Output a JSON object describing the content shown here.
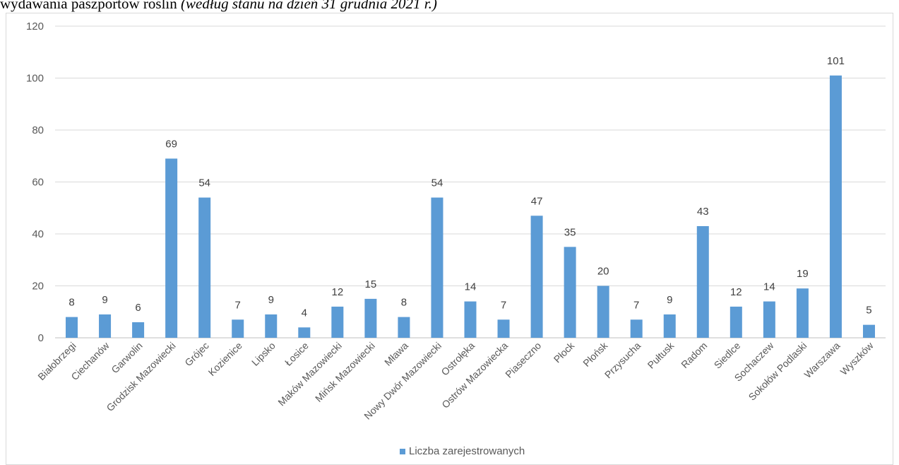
{
  "title": {
    "prefix": "wydawania paszportów roślin ",
    "italic": "(według stanu na dzień 31 grudnia 2021 r.)"
  },
  "colors": {
    "bar": "#5b9bd5",
    "grid": "#d9d9d9",
    "axis": "#bfbfbf"
  },
  "chart_data": {
    "type": "bar",
    "categories": [
      "Białobrzegi",
      "Ciechanów",
      "Garwolin",
      "Grodzisk Mazowiecki",
      "Grójec",
      "Kozienice",
      "Lipsko",
      "Łosice",
      "Maków Mazowiecki",
      "Mińsk Mazowiecki",
      "Mława",
      "Nowy Dwór Mazowiecki",
      "Ostrołęka",
      "Ostrów Mazowiecka",
      "Piaseczno",
      "Płock",
      "Płońsk",
      "Przysucha",
      "Pułtusk",
      "Radom",
      "Siedlce",
      "Sochaczew",
      "Sokołów Podlaski",
      "Warszawa",
      "Wyszków"
    ],
    "series": [
      {
        "name": "Liczba zarejestrowanych",
        "values": [
          8,
          9,
          6,
          69,
          54,
          7,
          9,
          4,
          12,
          15,
          8,
          54,
          14,
          7,
          47,
          35,
          20,
          7,
          9,
          43,
          12,
          14,
          19,
          101,
          5
        ]
      }
    ],
    "ylim": [
      0,
      120
    ],
    "yticks": [
      0,
      20,
      40,
      60,
      80,
      100,
      120
    ],
    "grid": true,
    "legend_position": "bottom",
    "data_labels": true
  }
}
